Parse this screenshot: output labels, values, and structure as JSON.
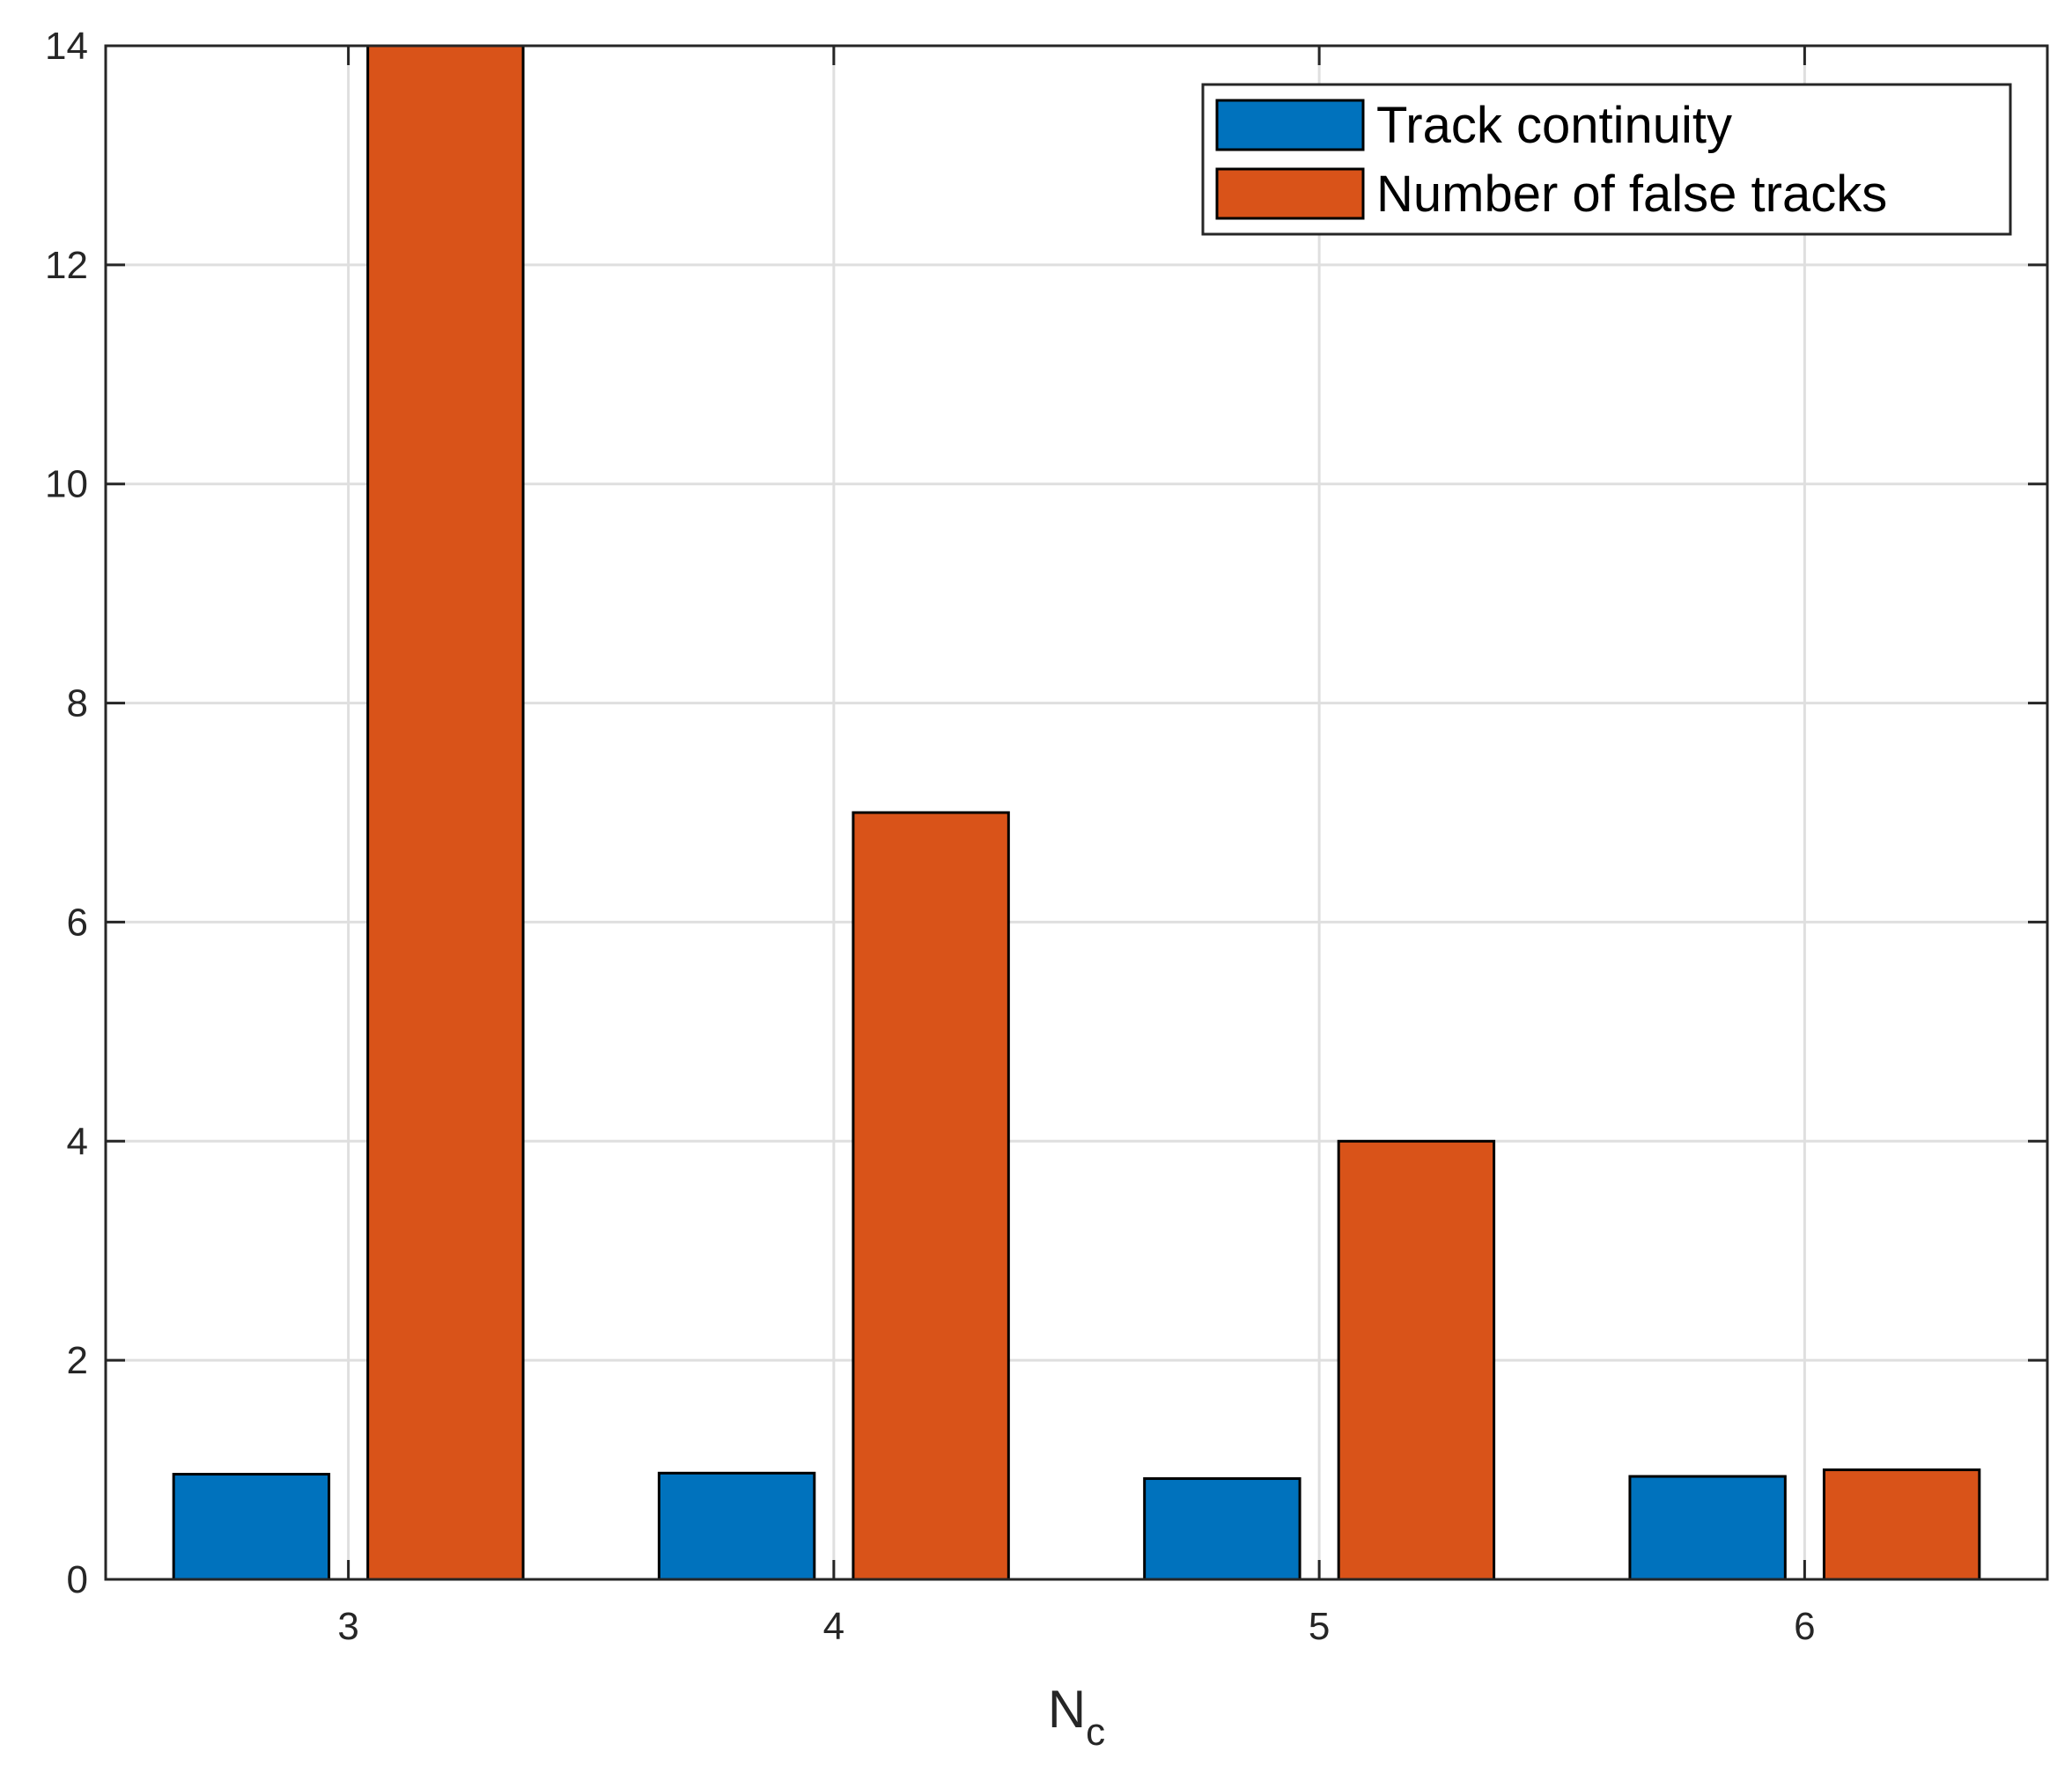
{
  "chart_data": {
    "type": "bar",
    "title": "",
    "xlabel": "N",
    "xlabel_subscript": "c",
    "ylabel": "",
    "categories": [
      "3",
      "4",
      "5",
      "6"
    ],
    "series": [
      {
        "name": "Track continuity",
        "color": "#0072BD",
        "values": [
          0.96,
          0.97,
          0.92,
          0.94
        ]
      },
      {
        "name": "Number of false tracks",
        "color": "#D95319",
        "values": [
          14,
          7,
          4,
          1
        ]
      }
    ],
    "ylim": [
      0,
      14
    ],
    "yticks": [
      "0",
      "2",
      "4",
      "6",
      "8",
      "10",
      "12",
      "14"
    ],
    "grid": true,
    "legend_position": "top-right"
  }
}
